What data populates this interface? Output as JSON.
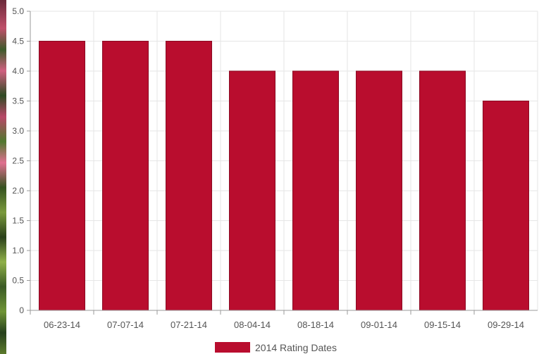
{
  "chart_data": {
    "type": "bar",
    "categories": [
      "06-23-14",
      "07-07-14",
      "07-21-14",
      "08-04-14",
      "08-18-14",
      "09-01-14",
      "09-15-14",
      "09-29-14"
    ],
    "series": [
      {
        "name": "2014 Rating Dates",
        "values": [
          4.5,
          4.5,
          4.5,
          4.0,
          4.0,
          4.0,
          4.0,
          3.5
        ]
      }
    ],
    "y_ticks": [
      "0",
      "0.5",
      "1.0",
      "1.5",
      "2.0",
      "2.5",
      "3.0",
      "3.5",
      "4.0",
      "4.5",
      "5.0"
    ],
    "ylim": [
      0,
      5
    ],
    "grid": true,
    "legend_position": "bottom",
    "bar_color": "#b90d2e",
    "title": "",
    "xlabel": "",
    "ylabel": ""
  }
}
